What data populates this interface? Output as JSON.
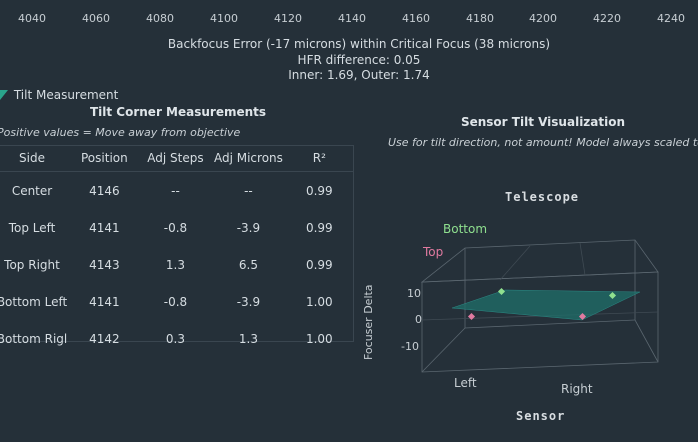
{
  "focus_axis": {
    "ticks": [
      "4040",
      "4060",
      "4080",
      "4100",
      "4120",
      "4140",
      "4160",
      "4180",
      "4200",
      "4220",
      "4240"
    ]
  },
  "summary": {
    "backfocus": "Backfocus Error (-17 microns) within Critical Focus (38 microns)",
    "hfr_diff": "HFR difference: 0.05",
    "inner_outer": "Inner: 1.69, Outer: 1.74"
  },
  "section": {
    "label": "Tilt Measurement",
    "icon": "triangle-expand-icon"
  },
  "tilt_table": {
    "title": "Tilt Corner Measurements",
    "note": "Positive values = Move away from objective",
    "headers": [
      "Side",
      "Position",
      "Adj Steps",
      "Adj Microns",
      "R²"
    ],
    "rows": [
      [
        "Center",
        "4146",
        "--",
        "--",
        "0.99"
      ],
      [
        "Top Left",
        "4141",
        "-0.8",
        "-3.9",
        "0.99"
      ],
      [
        "Top Right",
        "4143",
        "1.3",
        "6.5",
        "0.99"
      ],
      [
        "Bottom Left",
        "4141",
        "-0.8",
        "-3.9",
        "1.00"
      ],
      [
        "Bottom Rigl",
        "4142",
        "0.3",
        "1.3",
        "1.00"
      ]
    ]
  },
  "viz": {
    "title": "Sensor Tilt Visualization",
    "note": "Use for tilt direction, not amount! Model always scaled to fit",
    "telescope": "Telescope",
    "sensor": "Sensor",
    "bottom": "Bottom",
    "top": "Top",
    "left": "Left",
    "right": "Right",
    "zaxis": "Focuser Delta",
    "zticks": [
      "10",
      "0",
      "-10"
    ],
    "colors": {
      "bottom": "#8fe08f",
      "top": "#e07aa0",
      "plane": "#1f6f6a"
    }
  }
}
